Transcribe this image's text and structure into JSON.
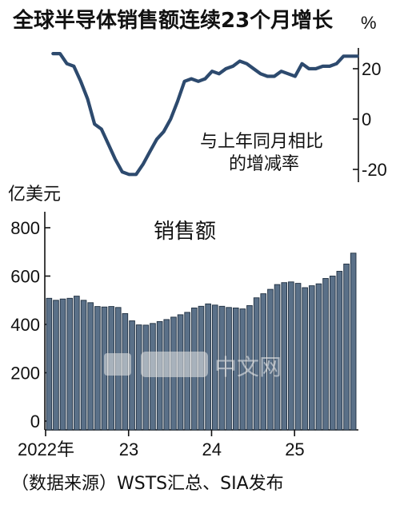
{
  "title": "全球半导体销售额连续23个月增长",
  "source": "（数据来源）WSTS汇总、SIA发布",
  "watermark": "中文网",
  "colors": {
    "line": "#2d4a6e",
    "bar": "#5a7088",
    "bar_edge": "#1f2f40",
    "axis": "#111111"
  },
  "chart_data": [
    {
      "type": "line",
      "label": "与上年同月相比的增减率",
      "label_lines": [
        "与上年同月相比",
        "的增减率"
      ],
      "unit": "%",
      "yticks": [
        20,
        0,
        -20
      ],
      "ylim": [
        -24,
        28
      ],
      "x": [
        "2022-01",
        "2022-02",
        "2022-03",
        "2022-04",
        "2022-05",
        "2022-06",
        "2022-07",
        "2022-08",
        "2022-09",
        "2022-10",
        "2022-11",
        "2022-12",
        "2023-01",
        "2023-02",
        "2023-03",
        "2023-04",
        "2023-05",
        "2023-06",
        "2023-07",
        "2023-08",
        "2023-09",
        "2023-10",
        "2023-11",
        "2023-12",
        "2024-01",
        "2024-02",
        "2024-03",
        "2024-04",
        "2024-05",
        "2024-06",
        "2024-07",
        "2024-08",
        "2024-09",
        "2024-10",
        "2024-11",
        "2024-12",
        "2025-01",
        "2025-02",
        "2025-03",
        "2025-04",
        "2025-05",
        "2025-06",
        "2025-07",
        "2025-08",
        "2025-09"
      ],
      "values": [
        26,
        26,
        22,
        21,
        15,
        8,
        -2,
        -4,
        -10,
        -16,
        -21,
        -22,
        -22,
        -18,
        -13,
        -8,
        -5,
        0,
        7,
        15,
        16,
        15,
        16,
        19,
        18,
        20,
        21,
        23,
        22,
        20,
        18,
        17,
        17,
        19,
        18,
        17,
        22,
        20,
        20,
        21,
        21,
        22,
        25,
        25,
        25
      ]
    },
    {
      "type": "bar",
      "title": "销售额",
      "ylabel": "亿美元",
      "ylim": [
        0,
        850
      ],
      "yticks": [
        0,
        200,
        400,
        600,
        800
      ],
      "xtick_labels": [
        "2022年",
        "23",
        "24",
        "25"
      ],
      "xtick_index": [
        0,
        12,
        24,
        36
      ],
      "categories": [
        "2022-01",
        "2022-02",
        "2022-03",
        "2022-04",
        "2022-05",
        "2022-06",
        "2022-07",
        "2022-08",
        "2022-09",
        "2022-10",
        "2022-11",
        "2022-12",
        "2023-01",
        "2023-02",
        "2023-03",
        "2023-04",
        "2023-05",
        "2023-06",
        "2023-07",
        "2023-08",
        "2023-09",
        "2023-10",
        "2023-11",
        "2023-12",
        "2024-01",
        "2024-02",
        "2024-03",
        "2024-04",
        "2024-05",
        "2024-06",
        "2024-07",
        "2024-08",
        "2024-09",
        "2024-10",
        "2024-11",
        "2024-12",
        "2025-01",
        "2025-02",
        "2025-03",
        "2025-04",
        "2025-05",
        "2025-06",
        "2025-07",
        "2025-08",
        "2025-09"
      ],
      "values": [
        508,
        500,
        505,
        508,
        517,
        500,
        490,
        474,
        472,
        474,
        470,
        445,
        415,
        398,
        397,
        404,
        412,
        420,
        430,
        440,
        450,
        468,
        475,
        485,
        480,
        475,
        470,
        468,
        464,
        478,
        510,
        527,
        545,
        565,
        573,
        576,
        570,
        552,
        560,
        568,
        590,
        600,
        620,
        650,
        695
      ]
    }
  ]
}
